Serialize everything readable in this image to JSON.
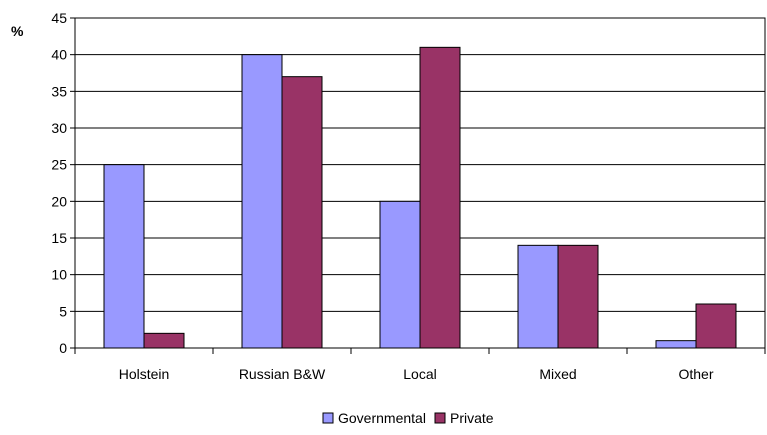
{
  "chart_data": {
    "type": "bar",
    "ylabel": "%",
    "ylim": [
      0,
      45
    ],
    "yticks": [
      0,
      5,
      10,
      15,
      20,
      25,
      30,
      35,
      40,
      45
    ],
    "grid": true,
    "legend_position": "bottom",
    "categories": [
      "Holstein",
      "Russian B&W",
      "Local",
      "Mixed",
      "Other"
    ],
    "series": [
      {
        "name": "Governmental",
        "color": "#9999ff",
        "values": [
          25,
          40,
          20,
          14,
          1
        ]
      },
      {
        "name": "Private",
        "color": "#993366",
        "values": [
          2,
          37,
          41,
          14,
          6
        ]
      }
    ]
  }
}
